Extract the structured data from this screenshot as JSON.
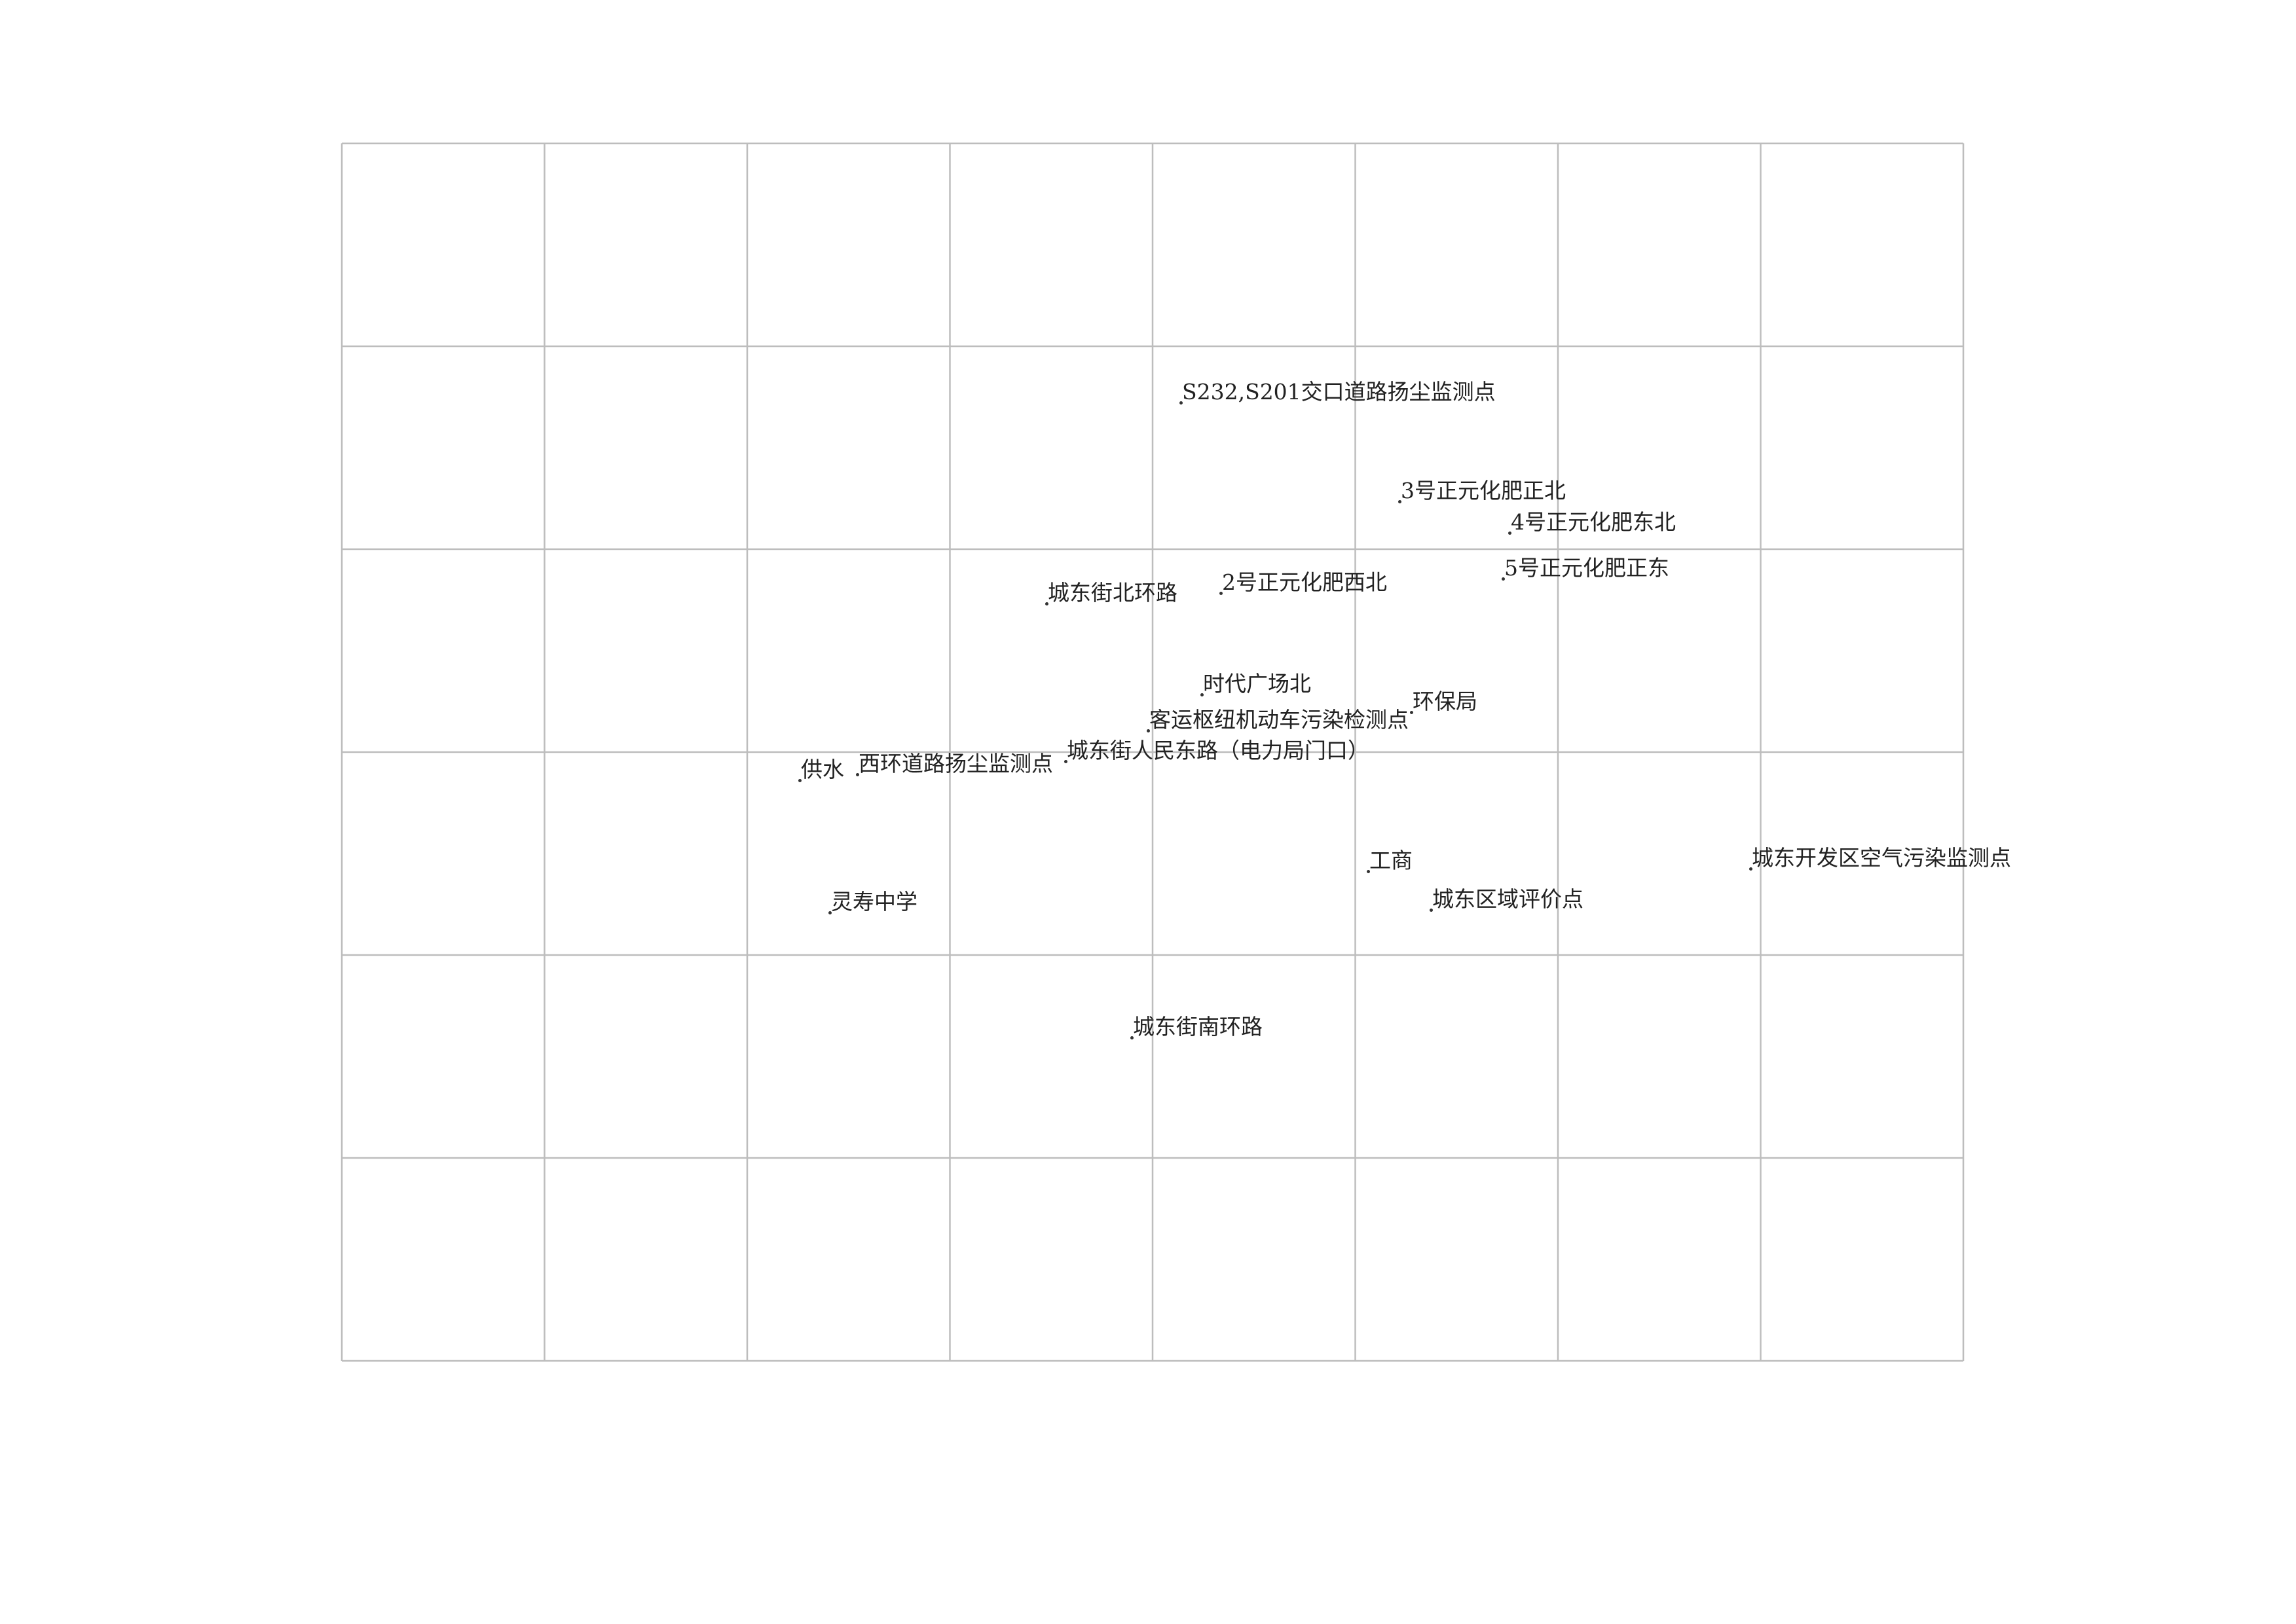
{
  "grid": {
    "columns": 8,
    "rows": 6,
    "line_color": "#bdbdbd"
  },
  "stations": [
    {
      "name": "S232,S201交口道路扬尘监测点"
    },
    {
      "name": "3号正元化肥正北"
    },
    {
      "name": "4号正元化肥东北"
    },
    {
      "name": "5号正元化肥正东"
    },
    {
      "name": "城东街北环路"
    },
    {
      "name": "2号正元化肥西北"
    },
    {
      "name": "时代广场北"
    },
    {
      "name": "环保局"
    },
    {
      "name": "客运枢纽机动车污染检测点"
    },
    {
      "name": "城东街人民东路（电力局门口）"
    },
    {
      "name": "供水"
    },
    {
      "name": "西环道路扬尘监测点"
    },
    {
      "name": "工商"
    },
    {
      "name": "城东开发区空气污染监测点"
    },
    {
      "name": "灵寿中学"
    },
    {
      "name": "城东区域评价点"
    },
    {
      "name": "城东街南环路"
    }
  ]
}
